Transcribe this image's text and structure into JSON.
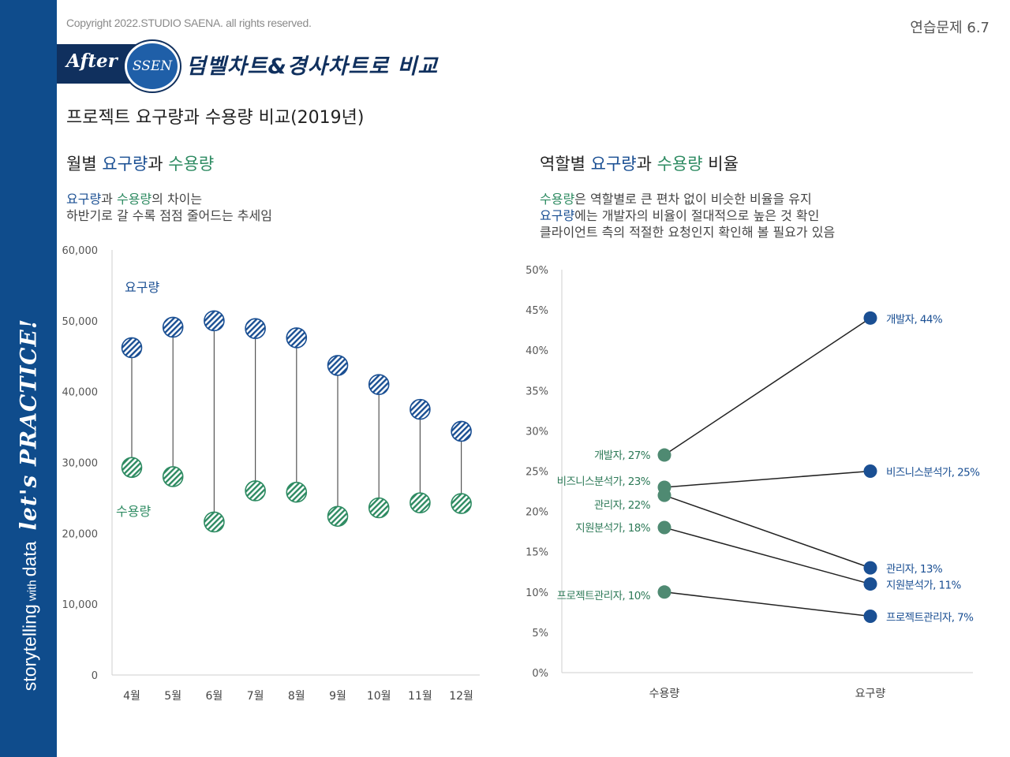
{
  "header": {
    "copyright": "Copyright 2022.STUDIO SAENA. all rights reserved.",
    "page_number": "연습문제 6.7",
    "after_label": "After",
    "ssen_label": "SSEN",
    "banner_title": "덤벨차트&경사차트로 비교",
    "main_title": "프로젝트 요구량과 수용량 비교(2019년)"
  },
  "sidebar": {
    "text1": "storytelling",
    "text2": " with ",
    "text3": "data",
    "text4": "let's PRACTICE!"
  },
  "left": {
    "title_prefix": "월별 ",
    "title_demand": "요구량",
    "title_mid": "과 ",
    "title_supply": "수용량",
    "desc_line1_demand": "요구량",
    "desc_line1_mid": "과 ",
    "desc_line1_supply": "수용량",
    "desc_line1_rest": "의 차이는",
    "desc_line2": "하반기로 갈 수록 점점 줄어드는 추세임"
  },
  "right": {
    "title_prefix": "역할별 ",
    "title_demand": "요구량",
    "title_mid": "과 ",
    "title_supply": "수용량",
    "title_suffix": " 비율",
    "desc_line1_supply": "수용량",
    "desc_line1_rest": "은 역할별로 큰 편차 없이 비슷한 비율을 유지",
    "desc_line2_demand": "요구량",
    "desc_line2_rest": "에는 개발자의 비율이 절대적으로 높은 것 확인",
    "desc_line3": "클라이언트 측의 적절한 요청인지 확인해 볼 필요가 있음"
  },
  "colors": {
    "demand": "#1a4f93",
    "supply": "#2e8b62",
    "slope_supply": "#4f8a72",
    "sidebar": "#0f4c8c"
  },
  "chart_data": [
    {
      "type": "dumbbell",
      "categories": [
        "4월",
        "5월",
        "6월",
        "7월",
        "8월",
        "9월",
        "10월",
        "11월",
        "12월"
      ],
      "series": [
        {
          "name": "요구량",
          "values": [
            46200,
            49100,
            50000,
            48900,
            47600,
            43700,
            41000,
            37500,
            34400
          ]
        },
        {
          "name": "수용량",
          "values": [
            29300,
            28000,
            21600,
            26000,
            25800,
            22400,
            23600,
            24300,
            24200
          ]
        }
      ],
      "yticks": [
        "0",
        "10,000",
        "20,000",
        "30,000",
        "40,000",
        "50,000",
        "60,000"
      ],
      "ylim": [
        0,
        60000
      ],
      "annotations": {
        "demand": "요구량",
        "supply": "수용량"
      }
    },
    {
      "type": "slope",
      "categories": [
        "수용량",
        "요구량"
      ],
      "roles": [
        "개발자",
        "비즈니스분석가",
        "관리자",
        "지원분석가",
        "프로젝트관리자"
      ],
      "supply": [
        27,
        23,
        22,
        18,
        10
      ],
      "demand": [
        44,
        25,
        13,
        11,
        7
      ],
      "supply_labels": [
        "개발자, 27%",
        "비즈니스분석가, 23%",
        "관리자, 22%",
        "지원분석가, 18%",
        "프로젝트관리자, 10%"
      ],
      "demand_labels": [
        "개발자, 44%",
        "비즈니스분석가, 25%",
        "관리자, 13%",
        "지원분석가, 11%",
        "프로젝트관리자, 7%"
      ],
      "yticks": [
        "0%",
        "5%",
        "10%",
        "15%",
        "20%",
        "25%",
        "30%",
        "35%",
        "40%",
        "45%",
        "50%"
      ],
      "ylim": [
        0,
        50
      ]
    }
  ]
}
